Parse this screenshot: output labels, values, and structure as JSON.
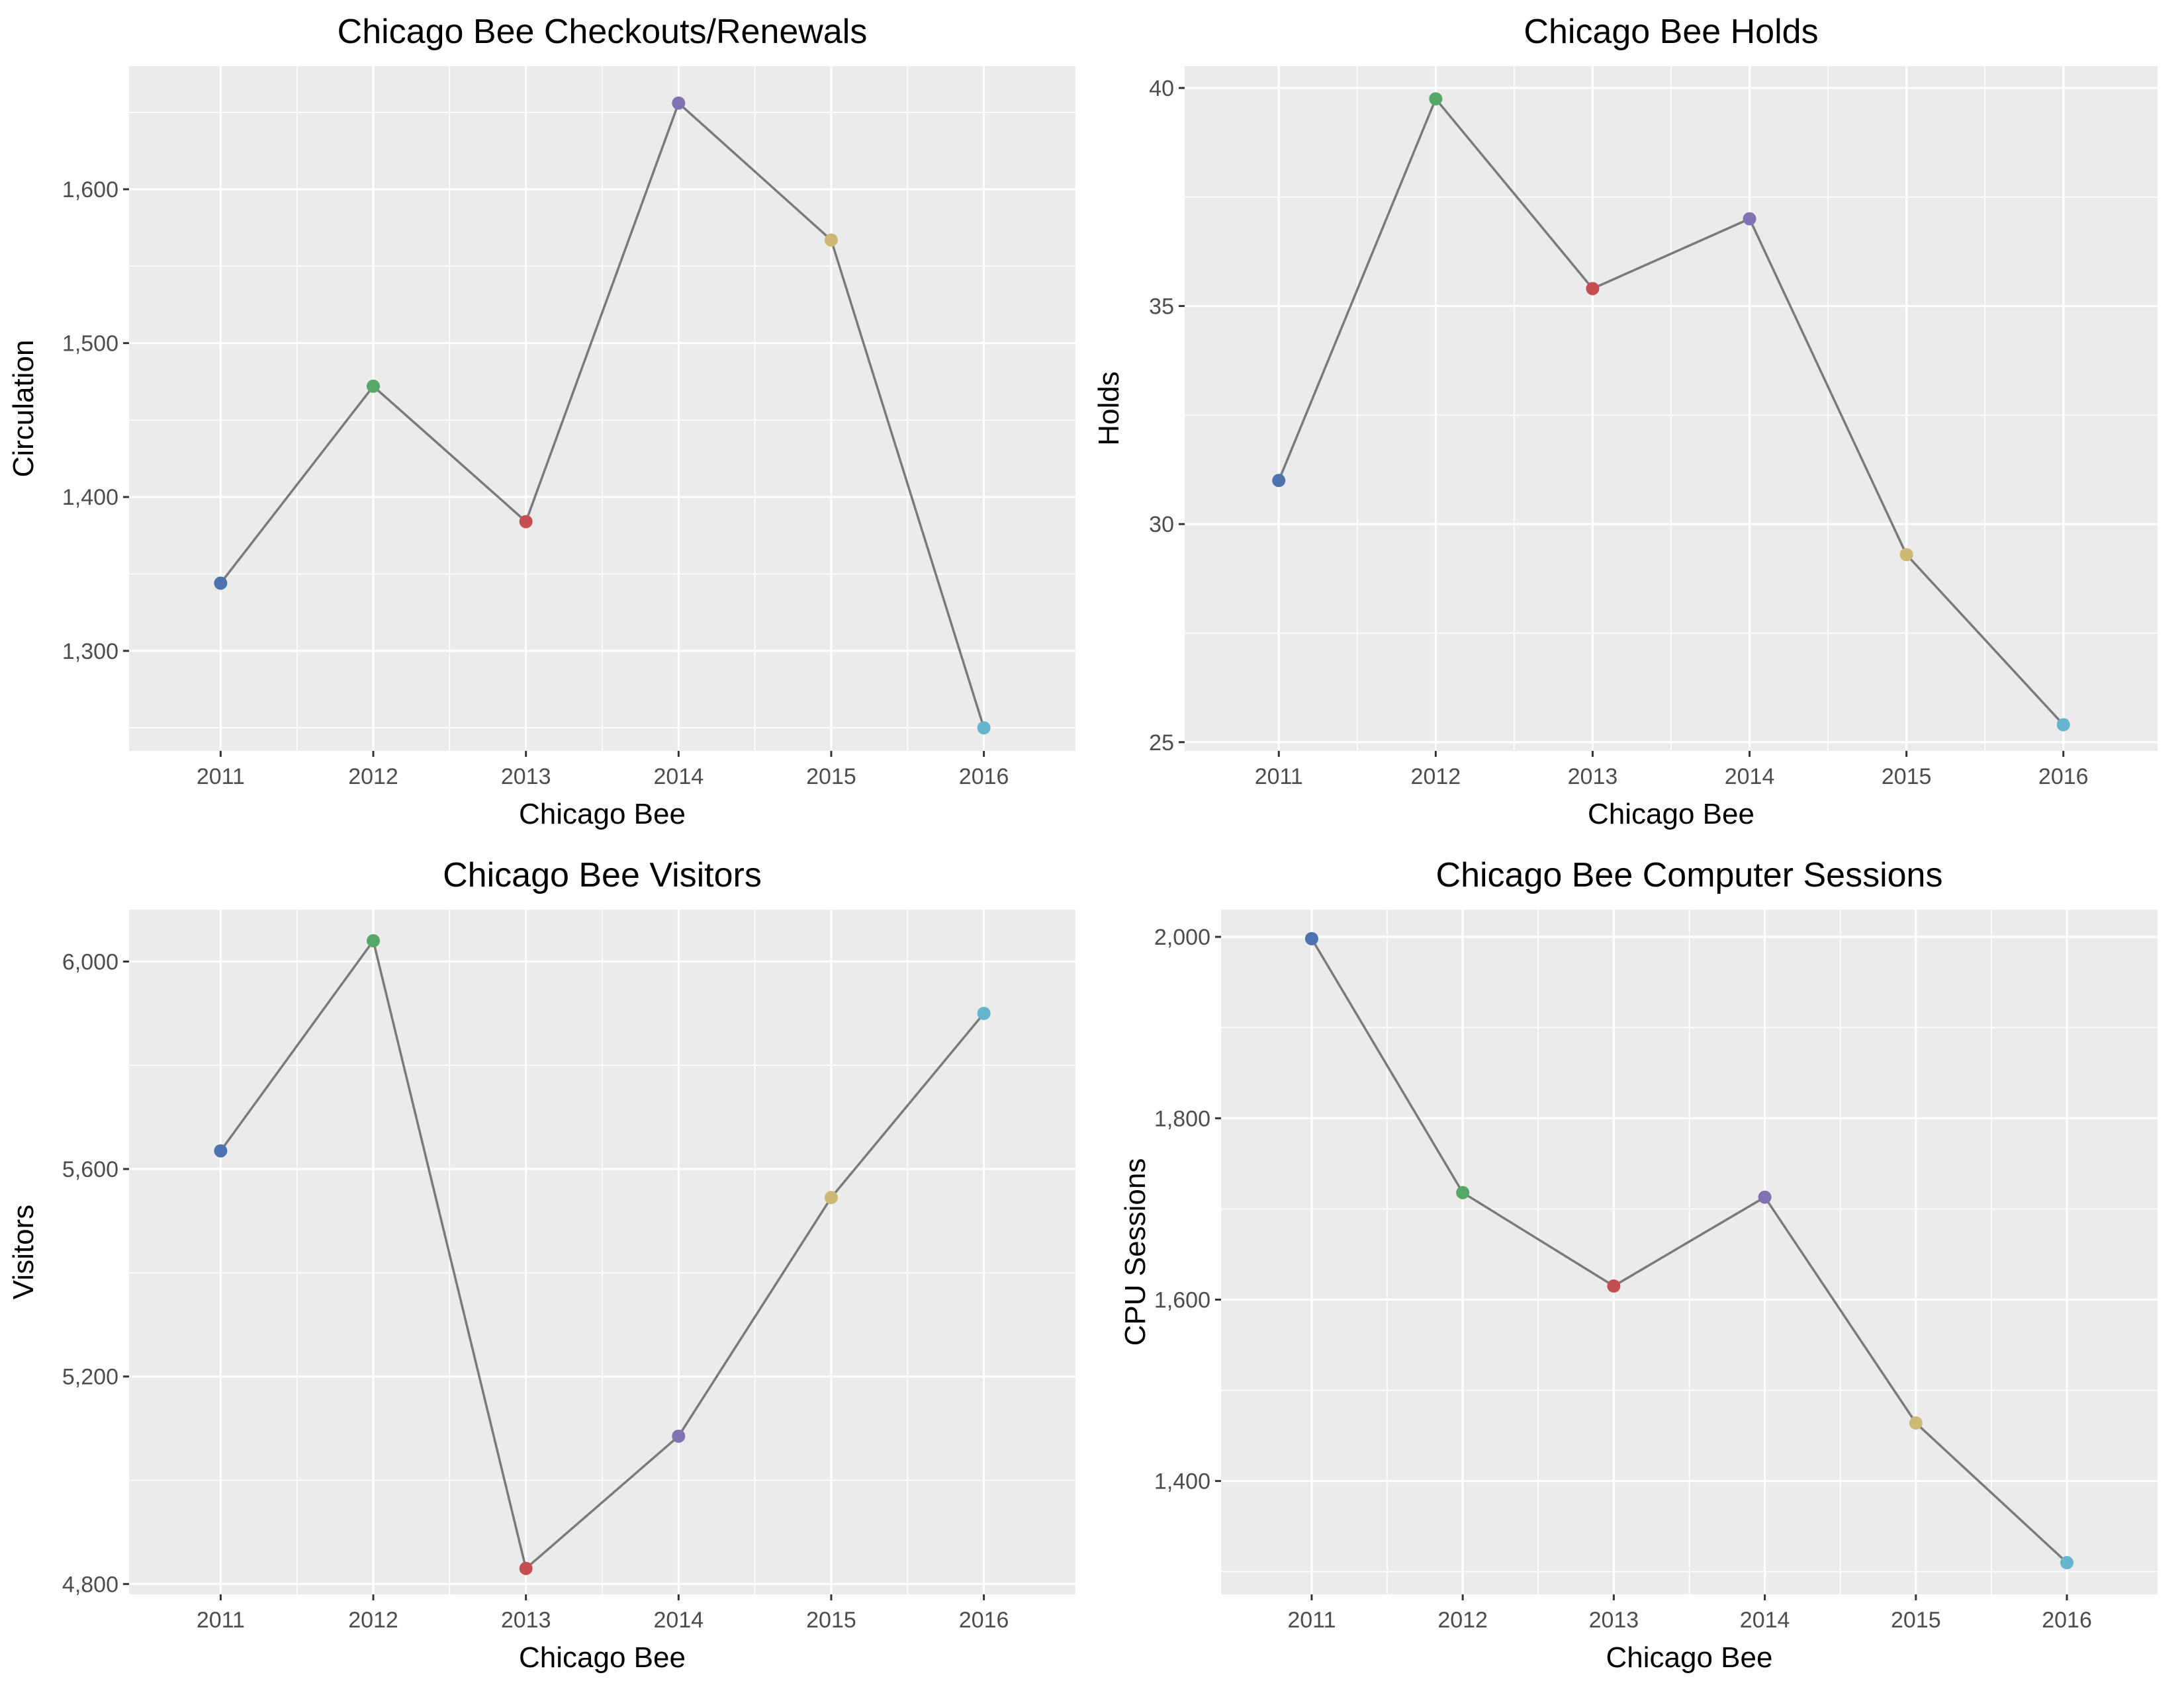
{
  "point_colors": [
    "#4c72b0",
    "#55a868",
    "#c44e52",
    "#8172b2",
    "#ccb974",
    "#64b5cd"
  ],
  "line_color": "#7a7a7a",
  "chart_data": [
    {
      "id": "checkouts",
      "type": "line",
      "title": "Chicago Bee Checkouts/Renewals",
      "xlabel": "Chicago Bee",
      "ylabel": "Circulation",
      "categories": [
        "2011",
        "2012",
        "2013",
        "2014",
        "2015",
        "2016"
      ],
      "values": [
        1344,
        1472,
        1384,
        1656,
        1567,
        1250
      ],
      "ylim": [
        1235,
        1680
      ],
      "yticks": [
        1300,
        1400,
        1500,
        1600
      ],
      "ytick_labels": [
        "1,300",
        "1,400",
        "1,500",
        "1,600"
      ],
      "grid": true
    },
    {
      "id": "holds",
      "type": "line",
      "title": "Chicago Bee Holds",
      "xlabel": "Chicago Bee",
      "ylabel": "Holds",
      "categories": [
        "2011",
        "2012",
        "2013",
        "2014",
        "2015",
        "2016"
      ],
      "values": [
        31,
        39.75,
        35.4,
        37,
        29.3,
        25.4
      ],
      "ylim": [
        24.8,
        40.5
      ],
      "yticks": [
        25,
        30,
        35,
        40
      ],
      "ytick_labels": [
        "25",
        "30",
        "35",
        "40"
      ],
      "grid": true
    },
    {
      "id": "visitors",
      "type": "line",
      "title": "Chicago Bee Visitors",
      "xlabel": "Chicago Bee",
      "ylabel": "Visitors",
      "categories": [
        "2011",
        "2012",
        "2013",
        "2014",
        "2015",
        "2016"
      ],
      "values": [
        5635,
        6040,
        4830,
        5085,
        5545,
        5900
      ],
      "ylim": [
        4780,
        6100
      ],
      "yticks": [
        4800,
        5200,
        5600,
        6000
      ],
      "ytick_labels": [
        "4,800",
        "5,200",
        "5,600",
        "6,000"
      ],
      "grid": true
    },
    {
      "id": "computer",
      "type": "line",
      "title": "Chicago Bee Computer Sessions",
      "xlabel": "Chicago Bee",
      "ylabel": "CPU Sessions",
      "categories": [
        "2011",
        "2012",
        "2013",
        "2014",
        "2015",
        "2016"
      ],
      "values": [
        1998,
        1718,
        1615,
        1713,
        1464,
        1310
      ],
      "ylim": [
        1275,
        2030
      ],
      "yticks": [
        1400,
        1600,
        1800,
        2000
      ],
      "ytick_labels": [
        "1,400",
        "1,600",
        "1,800",
        "2,000"
      ],
      "grid": true
    }
  ]
}
